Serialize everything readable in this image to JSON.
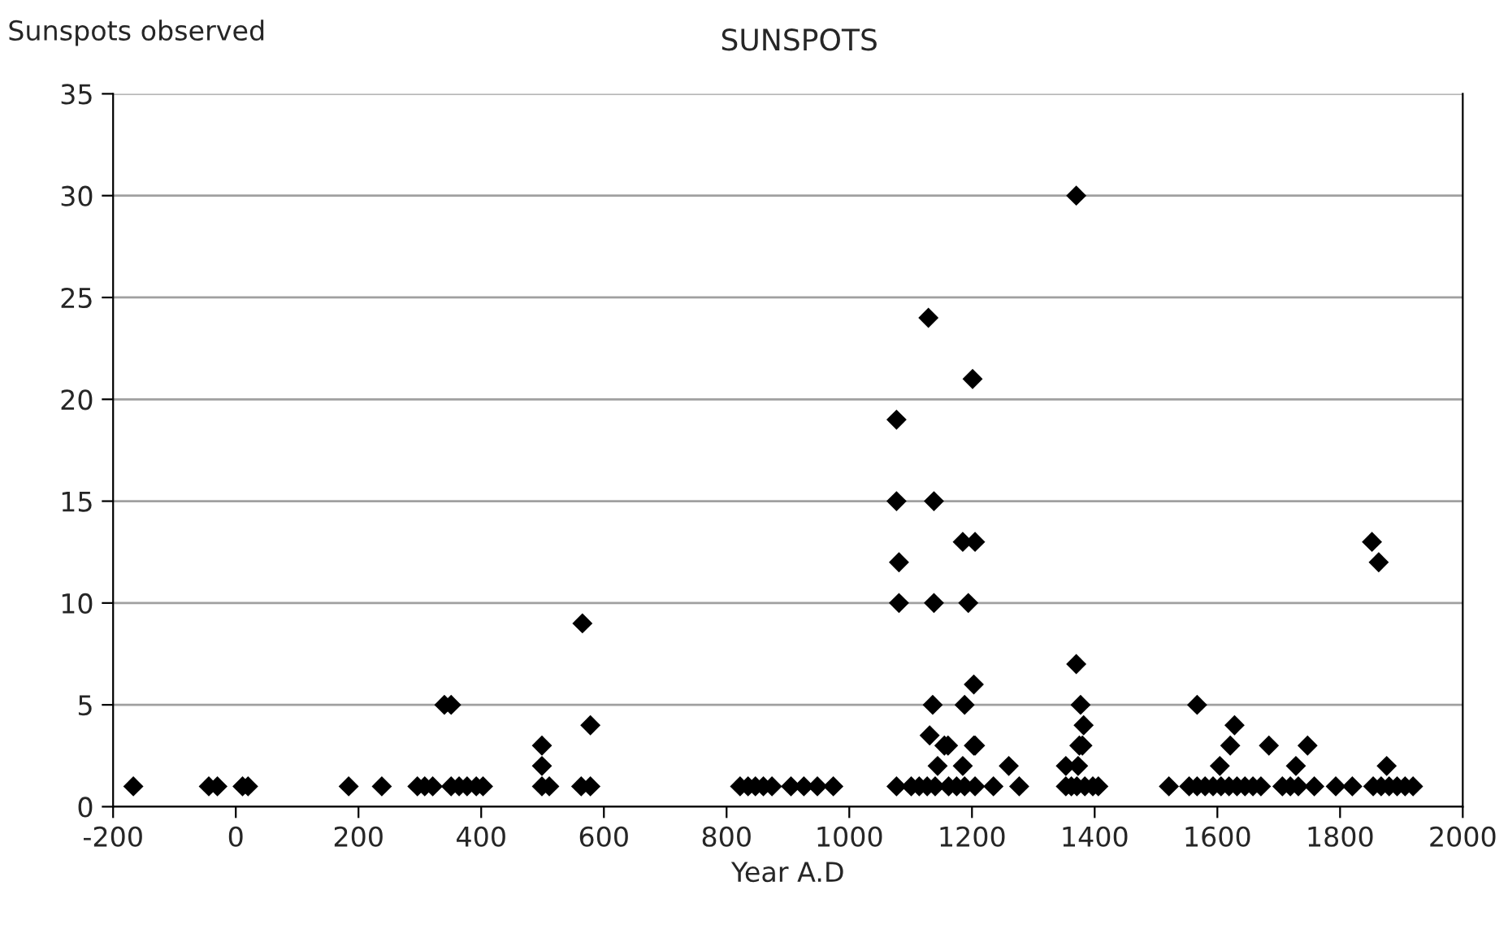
{
  "chart_data": {
    "type": "scatter",
    "title": "SUNSPOTS",
    "ylabel": "Sunspots observed",
    "xlabel": "Year A.D",
    "x": [
      -167,
      -44,
      -30,
      11,
      20,
      184,
      238,
      296,
      308,
      321,
      340,
      351,
      351,
      364,
      377,
      392,
      403,
      499,
      499,
      499,
      511,
      565,
      563,
      578,
      578,
      822,
      835,
      847,
      860,
      874,
      905,
      926,
      948,
      974,
      1077,
      1077,
      1077,
      1081,
      1081,
      1101,
      1114,
      1127,
      1140,
      1162,
      1175,
      1188,
      1205,
      1129,
      1138,
      1138,
      1136,
      1131,
      1144,
      1155,
      1161,
      1201,
      1185,
      1205,
      1194,
      1188,
      1203,
      1205,
      1203,
      1185,
      1235,
      1260,
      1277,
      1370,
      1370,
      1377,
      1382,
      1375,
      1380,
      1353,
      1373,
      1353,
      1362,
      1371,
      1384,
      1397,
      1406,
      1521,
      1554,
      1567,
      1580,
      1593,
      1606,
      1619,
      1632,
      1645,
      1658,
      1671,
      1567,
      1628,
      1621,
      1684,
      1747,
      1604,
      1728,
      1706,
      1719,
      1732,
      1758,
      1793,
      1820,
      1852,
      1863,
      1876,
      1854,
      1867,
      1880,
      1893,
      1906,
      1919
    ],
    "values": [
      1,
      1,
      1,
      1,
      1,
      1,
      1,
      1,
      1,
      1,
      5,
      5,
      1,
      1,
      1,
      1,
      1,
      1,
      2,
      3,
      1,
      9,
      1,
      1,
      4,
      1,
      1,
      1,
      1,
      1,
      1,
      1,
      1,
      1,
      1,
      15,
      19,
      12,
      10,
      1,
      1,
      1,
      1,
      1,
      1,
      1,
      1,
      24,
      15,
      10,
      5,
      3.5,
      2,
      3,
      3,
      21,
      13,
      13,
      10,
      5,
      6,
      3,
      3,
      2,
      1,
      2,
      1,
      30,
      7,
      5,
      4,
      3,
      3,
      2,
      2,
      1,
      1,
      1,
      1,
      1,
      1,
      1,
      1,
      1,
      1,
      1,
      1,
      1,
      1,
      1,
      1,
      1,
      5,
      4,
      3,
      3,
      3,
      2,
      2,
      1,
      1,
      1,
      1,
      1,
      1,
      13,
      12,
      2,
      1,
      1,
      1,
      1,
      1,
      1
    ],
    "color": "#000000",
    "marker": "diamond",
    "xlim": [
      -200,
      2000
    ],
    "xticks": [
      -200,
      0,
      200,
      400,
      600,
      800,
      1000,
      1200,
      1400,
      1600,
      1800,
      2000
    ],
    "ylim": [
      0,
      35
    ],
    "yticks": [
      0,
      5,
      10,
      15,
      20,
      25,
      30,
      35
    ],
    "grid": "y"
  }
}
